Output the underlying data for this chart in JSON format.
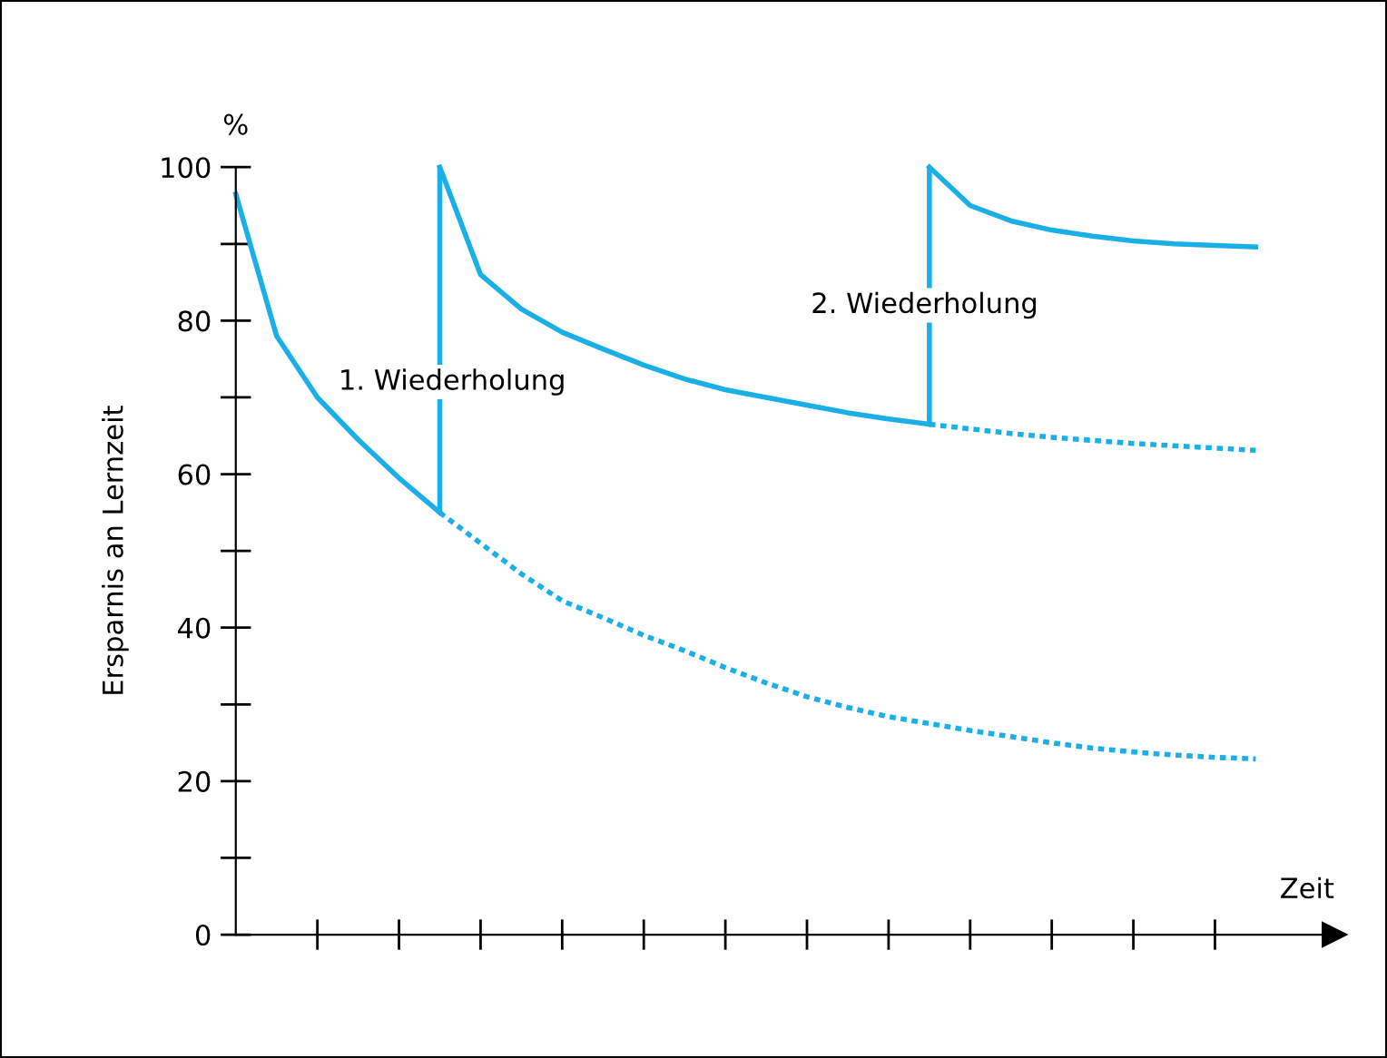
{
  "chart_data": {
    "type": "line",
    "ylabel": "Ersparnis an Lernzeit",
    "xlabel": "Zeit",
    "annotations": [
      "%",
      "1. Wiederholung",
      "2. Wiederholung"
    ],
    "categories": [
      null,
      null,
      null,
      null,
      null,
      null,
      null,
      null,
      null,
      null,
      null,
      null,
      null,
      null,
      null,
      null,
      null,
      null,
      null,
      null,
      null,
      null,
      null,
      null,
      null,
      null
    ],
    "series": [
      {
        "color": "#1aafe6",
        "line_style": "solid",
        "values": [
          96.5,
          78,
          70,
          64.5,
          59.5,
          55,
          null,
          null,
          null,
          null,
          null,
          null,
          null,
          null,
          null,
          null,
          null,
          null,
          null,
          null,
          null,
          null,
          null,
          null,
          null,
          null
        ]
      },
      {
        "color": "#1aafe6",
        "line_style": "dotted",
        "values": [
          null,
          null,
          null,
          null,
          null,
          55,
          51,
          47,
          43.5,
          41.3,
          39,
          37,
          34.8,
          32.8,
          31,
          29.6,
          28.4,
          27.5,
          26.6,
          25.8,
          25,
          24.3,
          23.8,
          23.4,
          23.1,
          22.9
        ]
      },
      {
        "color": "#1aafe6",
        "line_style": "solid",
        "values": [
          null,
          null,
          null,
          null,
          null,
          100,
          86,
          81.5,
          78.5,
          76.3,
          74.2,
          72.4,
          71,
          70,
          69,
          68,
          67.2,
          66.5,
          null,
          null,
          null,
          null,
          null,
          null,
          null,
          null
        ],
        "errors": [
          null,
          null,
          null,
          null,
          null,
          [
            55,
            100
          ],
          null,
          null,
          null,
          null,
          null,
          null,
          null,
          null,
          null,
          null,
          null,
          null,
          null,
          null,
          null,
          null,
          null,
          null,
          null,
          null
        ]
      },
      {
        "color": "#1aafe6",
        "line_style": "dotted",
        "values": [
          null,
          null,
          null,
          null,
          null,
          null,
          null,
          null,
          null,
          null,
          null,
          null,
          null,
          null,
          null,
          null,
          null,
          66.5,
          65.9,
          65.3,
          64.8,
          64.4,
          64,
          63.7,
          63.4,
          63.1
        ]
      },
      {
        "color": "#1aafe6",
        "line_style": "solid",
        "values": [
          null,
          null,
          null,
          null,
          null,
          null,
          null,
          null,
          null,
          null,
          null,
          null,
          null,
          null,
          null,
          null,
          null,
          100,
          95,
          93,
          91.8,
          91,
          90.4,
          90,
          89.8,
          89.6
        ],
        "errors": [
          null,
          null,
          null,
          null,
          null,
          null,
          null,
          null,
          null,
          null,
          null,
          null,
          null,
          null,
          null,
          null,
          null,
          [
            66.5,
            100
          ],
          null,
          null,
          null,
          null,
          null,
          null,
          null,
          null
        ]
      }
    ],
    "ylim": [
      0,
      100
    ],
    "yticks": [
      0,
      20,
      40,
      60,
      80,
      100
    ],
    "grid": false
  }
}
